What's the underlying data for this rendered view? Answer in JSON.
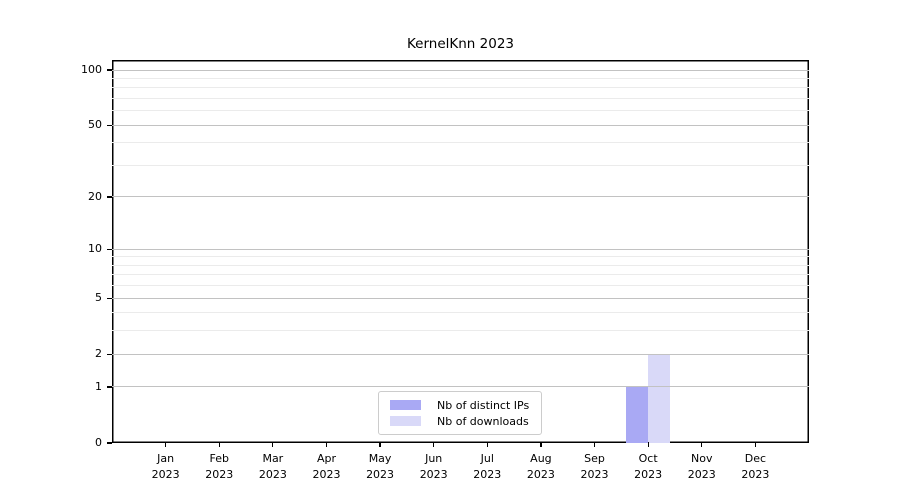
{
  "chart_data": {
    "type": "bar",
    "title": "KernelKnn 2023",
    "categories": [
      "Jan\n2023",
      "Feb\n2023",
      "Mar\n2023",
      "Apr\n2023",
      "May\n2023",
      "Jun\n2023",
      "Jul\n2023",
      "Aug\n2023",
      "Sep\n2023",
      "Oct\n2023",
      "Nov\n2023",
      "Dec\n2023"
    ],
    "series": [
      {
        "name": "Nb of distinct IPs",
        "color": "#a9a9f4",
        "values": [
          0,
          0,
          0,
          0,
          0,
          0,
          0,
          0,
          0,
          1,
          0,
          0
        ]
      },
      {
        "name": "Nb of downloads",
        "color": "#d9d9f8",
        "values": [
          0,
          0,
          0,
          0,
          0,
          0,
          0,
          0,
          0,
          2,
          0,
          0
        ]
      }
    ],
    "y_axis": {
      "scale": "log1p",
      "ticks": [
        0,
        1,
        2,
        5,
        10,
        20,
        50,
        100
      ],
      "minor_ticks": [
        3,
        4,
        6,
        7,
        8,
        9,
        30,
        40,
        60,
        70,
        80,
        90
      ],
      "max": 100
    },
    "ylim": [
      0,
      100
    ],
    "xlabel": "",
    "ylabel": "",
    "grid": true,
    "legend_position": "bottom-center",
    "colors": {
      "grid_major": "#c2c2c2",
      "grid_minor": "#ebebeb",
      "axis": "#000000",
      "background": "#ffffff"
    }
  }
}
